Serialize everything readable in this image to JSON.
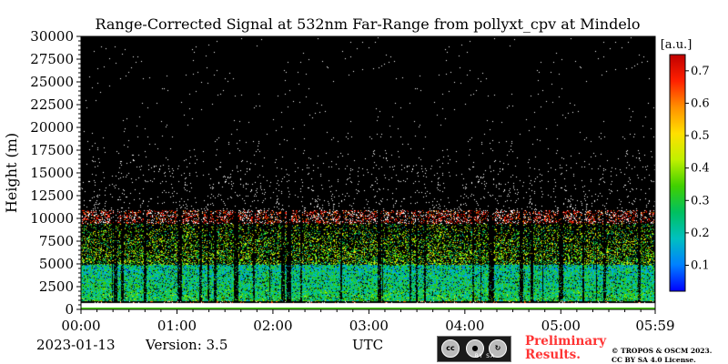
{
  "chart_data": {
    "type": "heatmap",
    "title": "Range-Corrected Signal at 532nm Far-Range from pollyxt_cpv at Mindelo",
    "ylabel": "Height (m)",
    "xlabel": "UTC",
    "x_ticks": [
      "00:00",
      "01:00",
      "02:00",
      "03:00",
      "04:00",
      "05:00",
      "05:59"
    ],
    "x_range": [
      "00:00",
      "05:59"
    ],
    "y_ticks": [
      0,
      2500,
      5000,
      7500,
      10000,
      12500,
      15000,
      17500,
      20000,
      22500,
      25000,
      27500,
      30000
    ],
    "ylim": [
      0,
      30000
    ],
    "colorbar": {
      "unit_label": "[a.u.]",
      "ticks": [
        0.1,
        0.2,
        0.3,
        0.4,
        0.5,
        0.6,
        0.7
      ],
      "range": [
        0.02,
        0.75
      ],
      "colormap": [
        "#0000ff",
        "#0080ff",
        "#00c0c0",
        "#00c060",
        "#40d000",
        "#c0f000",
        "#ffe000",
        "#ff9000",
        "#ff2000",
        "#c00000"
      ]
    },
    "background_color": "#000000",
    "features": {
      "boundary_layer_top_m": 1000,
      "dense_aerosol_layer_top_m": 5000,
      "elevated_layer_m": [
        9500,
        11000
      ]
    }
  },
  "footer": {
    "date": "2023-01-13",
    "version": "Version: 3.5",
    "license_badge": {
      "cc": "cc",
      "strip": "BY  SA"
    },
    "preliminary": [
      "Preliminary",
      "Results."
    ],
    "copyright": [
      "© TROPOS & OSCM 2023.",
      "CC BY SA 4.0 License."
    ]
  }
}
